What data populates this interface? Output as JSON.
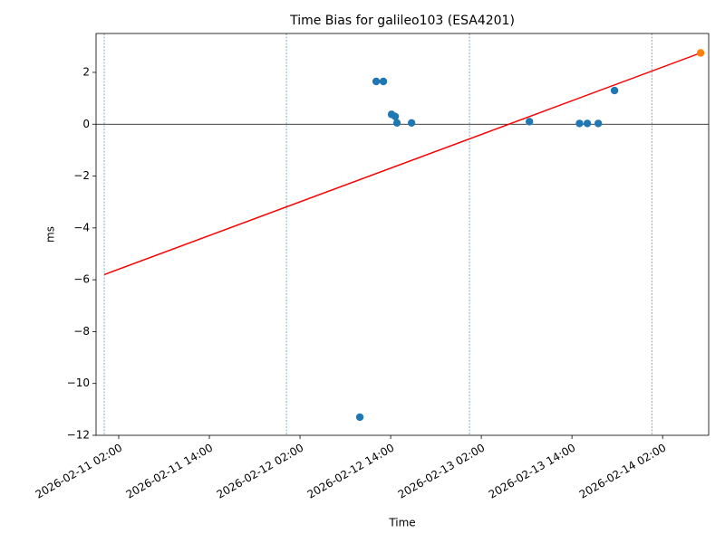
{
  "chart_data": {
    "type": "scatter",
    "title": "Time Bias for galileo103 (ESA4201)",
    "x_label": "Time",
    "y_label": "ms",
    "xlim": [
      "2026-02-10 23:00",
      "2026-02-14 08:06"
    ],
    "xticks": [
      "2026-02-11 02:00",
      "2026-02-11 14:00",
      "2026-02-12 02:00",
      "2026-02-12 14:00",
      "2026-02-13 02:00",
      "2026-02-13 14:00",
      "2026-02-14 02:00"
    ],
    "ylim": [
      -12,
      3.5
    ],
    "yticks": [
      {
        "value": -12,
        "label": "−12"
      },
      {
        "value": -10,
        "label": "−10"
      },
      {
        "value": -8,
        "label": "−8"
      },
      {
        "value": -6,
        "label": "−6"
      },
      {
        "value": -4,
        "label": "−4"
      },
      {
        "value": -2,
        "label": "−2"
      },
      0,
      2
    ],
    "hline": 0,
    "hline_color": "#000000",
    "vlines": [
      "2026-02-11 00:05",
      "2026-02-12 00:12",
      "2026-02-13 00:26",
      "2026-02-14 00:34"
    ],
    "vline_color": "#1f77b4",
    "series": [
      {
        "style": "markers",
        "color": "#1f77b4",
        "x": [
          "2026-02-12 09:55",
          "2026-02-12 12:05",
          "2026-02-12 13:02",
          "2026-02-12 14:07",
          "2026-02-12 14:36",
          "2026-02-12 14:50",
          "2026-02-12 16:46",
          "2026-02-13 08:22",
          "2026-02-13 15:00",
          "2026-02-13 16:02",
          "2026-02-13 17:29",
          "2026-02-13 19:38"
        ],
        "values": [
          -11.3,
          1.65,
          1.65,
          0.38,
          0.3,
          0.05,
          0.05,
          0.1,
          0.03,
          0.03,
          0.03,
          1.3
        ]
      },
      {
        "style": "line",
        "color": "#ff0000",
        "x": [
          "2026-02-11 00:05",
          "2026-02-14 07:02"
        ],
        "values": [
          -5.8,
          2.75
        ]
      },
      {
        "style": "markers",
        "color": "#ff7f0e",
        "x": [
          "2026-02-14 07:02"
        ],
        "values": [
          2.75
        ]
      }
    ]
  }
}
